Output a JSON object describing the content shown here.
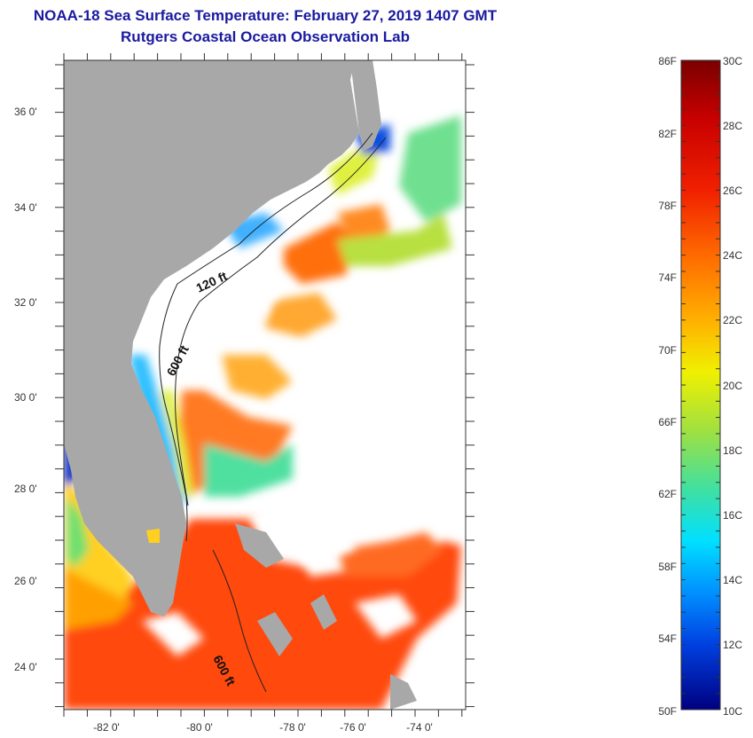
{
  "title": {
    "line1": "NOAA-18 Sea Surface Temperature:  February 27, 2019 1407 GMT",
    "line2": "Rutgers Coastal Ocean Observation Lab"
  },
  "map": {
    "lat_ticks": [
      "36 0'",
      "34 0'",
      "32 0'",
      "30 0'",
      "28 0'",
      "26 0'",
      "24 0'"
    ],
    "lon_ticks": [
      "-82 0'",
      "-80 0'",
      "-78 0'",
      "-76 0'",
      "-74 0'"
    ],
    "contours": [
      "120 ft",
      "600 ft",
      "600 ft"
    ],
    "land_color": "#a8a8a8",
    "cloud_color": "#ffffff"
  },
  "colorbar": {
    "fahrenheit": [
      "86F",
      "82F",
      "78F",
      "74F",
      "70F",
      "66F",
      "62F",
      "58F",
      "54F",
      "50F"
    ],
    "celsius": [
      "30C",
      "28C",
      "26C",
      "24C",
      "22C",
      "20C",
      "18C",
      "16C",
      "14C",
      "12C",
      "10C"
    ],
    "colors_top_to_bottom": [
      "#7a0000",
      "#c80000",
      "#f02000",
      "#ff6a00",
      "#ffb000",
      "#f0f000",
      "#a0e040",
      "#40e0a0",
      "#00e0ff",
      "#0090ff",
      "#0040e0",
      "#000080"
    ]
  }
}
